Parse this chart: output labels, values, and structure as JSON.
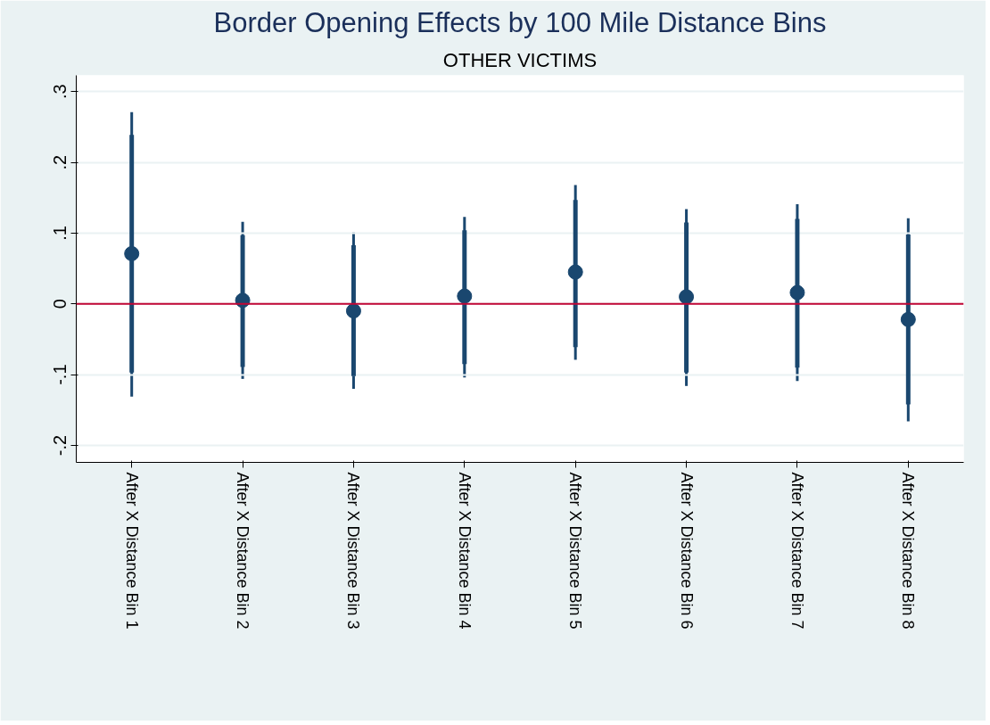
{
  "chart_data": {
    "type": "scatter",
    "title": "Border Opening Effects by 100 Mile Distance Bins",
    "subtitle": "OTHER VICTIMS",
    "categories": [
      "After X Distance Bin 1",
      "After X Distance Bin 2",
      "After X Distance Bin 3",
      "After X Distance Bin 4",
      "After X Distance Bin 5",
      "After X Distance Bin 6",
      "After X Distance Bin 7",
      "After X Distance Bin 8"
    ],
    "series": [
      {
        "type": "bar",
        "color": "#1a476f",
        "base": [
          -0.097,
          -0.089,
          -0.102,
          -0.085,
          -0.061,
          -0.097,
          -0.09,
          -0.142
        ],
        "values": [
          0.336,
          0.186,
          0.185,
          0.189,
          0.208,
          0.212,
          0.21,
          0.24
        ]
      },
      {
        "color": "#1a476f",
        "marker": "circle",
        "values": [
          0.071,
          0.005,
          -0.01,
          0.011,
          0.045,
          0.01,
          0.016,
          -0.022
        ],
        "errors": [
          [
            -0.131,
            0.271
          ],
          [
            -0.106,
            0.116
          ],
          [
            -0.12,
            0.101
          ],
          [
            -0.104,
            0.123
          ],
          [
            -0.079,
            0.168
          ],
          [
            -0.116,
            0.134
          ],
          [
            -0.109,
            0.141
          ],
          [
            -0.166,
            0.121
          ]
        ]
      }
    ],
    "ylim": [
      -0.224,
      0.323
    ],
    "yticks": [
      {
        "value": -0.2,
        "label": "-.2"
      },
      {
        "value": -0.1,
        "label": "-.1"
      },
      0,
      {
        "value": 0.1,
        "label": ".1"
      },
      {
        "value": 0.2,
        "label": ".2"
      },
      {
        "value": 0.3,
        "label": ".3"
      }
    ],
    "ref_lines": [
      {
        "axis": "y",
        "value": 0,
        "color": "#c10534"
      }
    ],
    "grid": "y"
  }
}
